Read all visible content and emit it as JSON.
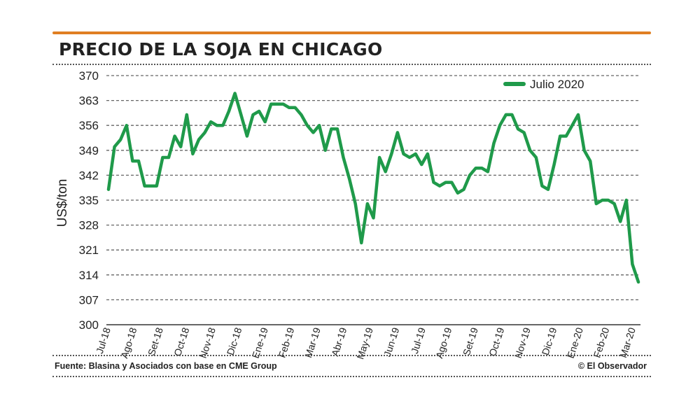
{
  "colors": {
    "accent": "#e07f22",
    "series": "#1f9a4a",
    "text": "#222222",
    "grid": "#666666"
  },
  "header": {
    "title": "PRECIO DE LA SOJA EN CHICAGO"
  },
  "footer": {
    "source": "Fuente: Blasina y Asociados con base en CME Group",
    "credit": "© El Observador"
  },
  "chart_data": {
    "type": "line",
    "title": "PRECIO DE LA SOJA EN CHICAGO",
    "ylabel": "US$/ton",
    "xlabel": "",
    "ylim": [
      300,
      370
    ],
    "yticks": [
      300,
      307,
      314,
      321,
      328,
      335,
      342,
      349,
      356,
      363,
      370
    ],
    "xticks": [
      "Jul-18",
      "Ago-18",
      "Set-18",
      "Oct-18",
      "Nov-18",
      "Dic-18",
      "Ene-19",
      "Feb-19",
      "Mar-19",
      "Abr-19",
      "May-19",
      "Jun-19",
      "Jul-19",
      "Ago-19",
      "Set-19",
      "Oct-19",
      "Nov-19",
      "Dic-19",
      "Ene-20",
      "Feb-20",
      "Mar-20"
    ],
    "grid": true,
    "legend_position": "top-right",
    "series": [
      {
        "name": "Julio 2020",
        "values": [
          338,
          350,
          352,
          356,
          346,
          346,
          339,
          339,
          339,
          347,
          347,
          353,
          350,
          359,
          348,
          352,
          354,
          357,
          356,
          356,
          360,
          365,
          359,
          353,
          359,
          360,
          357,
          362,
          362,
          362,
          361,
          361,
          359,
          356,
          354,
          356,
          349,
          355,
          355,
          347,
          341,
          334,
          323,
          334,
          330,
          347,
          343,
          348,
          354,
          348,
          347,
          348,
          345,
          348,
          340,
          339,
          340,
          340,
          337,
          338,
          342,
          344,
          344,
          343,
          351,
          356,
          359,
          359,
          355,
          354,
          349,
          347,
          339,
          338,
          345,
          353,
          353,
          356,
          359,
          349,
          346,
          334,
          335,
          335,
          334,
          329,
          335,
          317,
          312
        ]
      }
    ]
  }
}
